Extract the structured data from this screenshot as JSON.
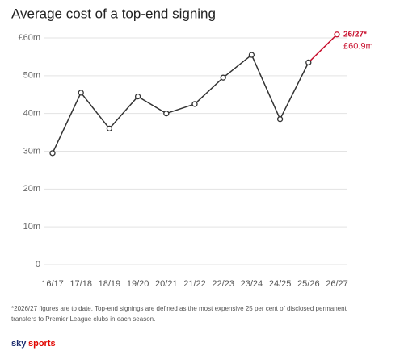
{
  "chart_data": {
    "type": "line",
    "title": "Average cost of a top-end signing",
    "categories": [
      "16/17",
      "17/18",
      "18/19",
      "19/20",
      "20/21",
      "21/22",
      "22/23",
      "23/24",
      "24/25",
      "25/26",
      "26/27"
    ],
    "values": [
      29.5,
      45.5,
      36,
      44.5,
      40,
      42.5,
      49.5,
      55.5,
      38.5,
      53.5,
      60.9
    ],
    "value_labels": [
      null,
      null,
      null,
      null,
      null,
      null,
      null,
      null,
      null,
      null,
      "£60.9m"
    ],
    "point_colors": [
      "#333333",
      "#333333",
      "#333333",
      "#333333",
      "#333333",
      "#333333",
      "#333333",
      "#333333",
      "#333333",
      "#333333",
      "#c8102e"
    ],
    "annotation": "26/27*",
    "ylim": [
      0,
      60
    ],
    "yticks": [
      0,
      {
        "value": 10,
        "label": "10m"
      },
      {
        "value": 20,
        "label": "20m"
      },
      {
        "value": 30,
        "label": "30m"
      },
      {
        "value": 40,
        "label": "40m"
      },
      {
        "value": 50,
        "label": "50m"
      },
      {
        "value": 60,
        "label": "£60m"
      }
    ],
    "grid": true,
    "footnote": [
      "*2026/27 figures are to date. Top-end signings are defined as the most expensive 25 per cent of disclosed permanent",
      "transfers to Premier League clubs in each season."
    ],
    "logo": [
      "sky",
      "sports"
    ]
  }
}
